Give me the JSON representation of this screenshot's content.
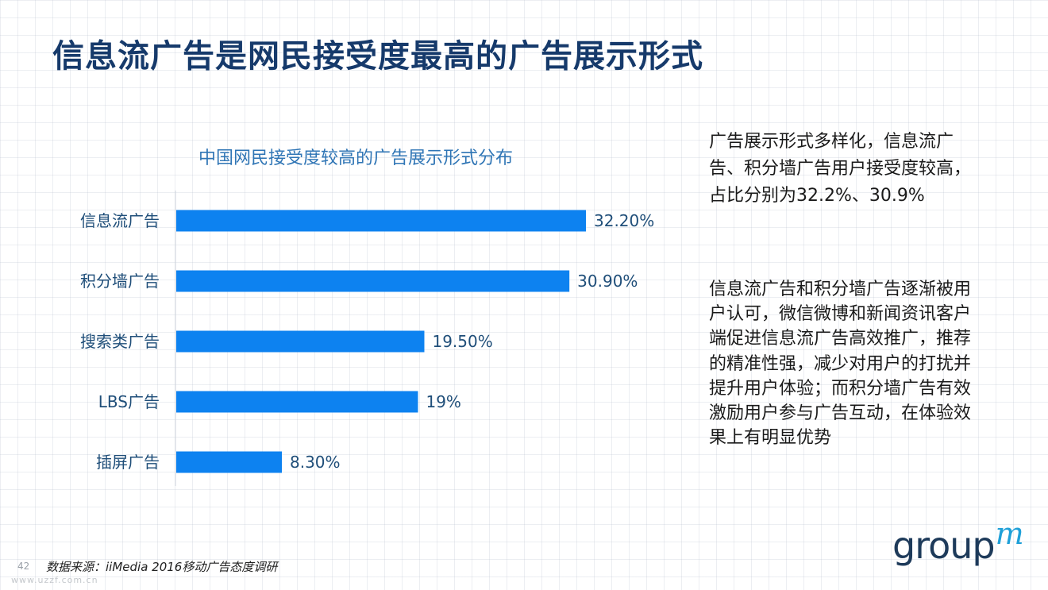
{
  "title": "信息流广告是网民接受度最高的广告展示形式",
  "chart_data": {
    "type": "bar",
    "orientation": "horizontal",
    "title": "中国网民接受度较高的广告展示形式分布",
    "categories": [
      "信息流广告",
      "积分墙广告",
      "搜索类广告",
      "LBS广告",
      "插屏广告"
    ],
    "values": [
      32.2,
      30.9,
      19.5,
      19,
      8.3
    ],
    "value_labels": [
      "32.20%",
      "30.90%",
      "19.50%",
      "19%",
      "8.30%"
    ],
    "xlim": [
      0,
      32.2
    ],
    "bar_color": "#0d82f0",
    "grid": false,
    "legend": "none"
  },
  "side_text": {
    "paragraph1": "广告展示形式多样化，信息流广告、积分墙广告用户接受度较高，占比分别为32.2%、30.9%",
    "paragraph2": "信息流广告和积分墙广告逐渐被用户认可，微信微博和新闻资讯客户端促进信息流广告高效推广，推荐的精准性强，减少对用户的打扰并提升用户体验；而积分墙广告有效激励用户参与广告互动，在体验效果上有明显优势"
  },
  "footer": {
    "source": "数据来源：iiMedia 2016移动广告态度调研",
    "page_number": "42",
    "watermark": "www.uzzf.com.cn",
    "logo_text": "group",
    "logo_mark": "m"
  }
}
